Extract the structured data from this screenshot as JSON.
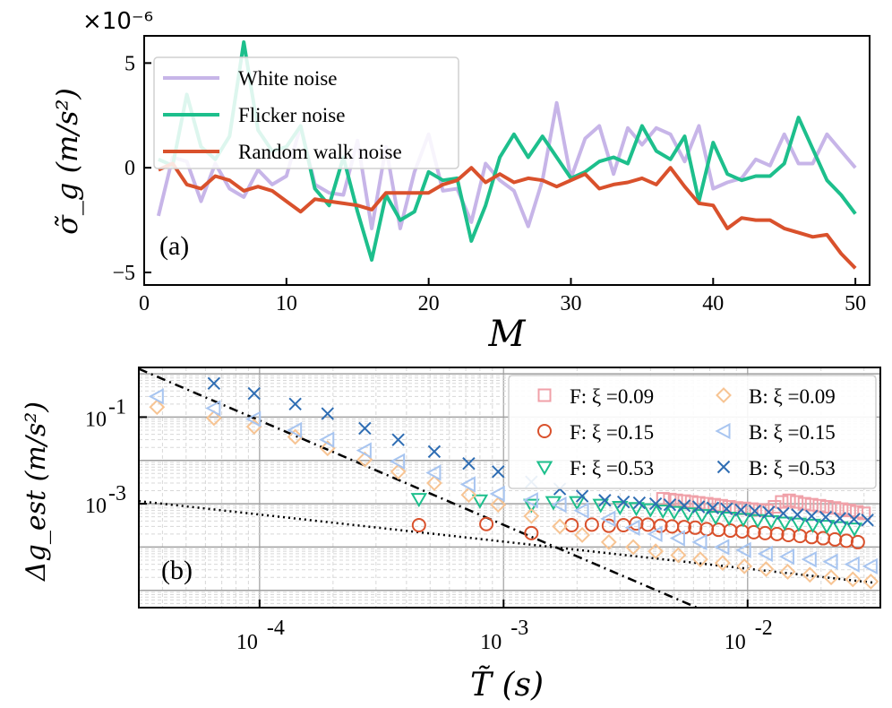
{
  "chart_data": [
    {
      "type": "line",
      "panel_label": "(a)",
      "xlabel": "M",
      "ylabel": "σ̃_g (m/s²)",
      "y_multiplier": "×10⁻⁶",
      "xlim": [
        0,
        51
      ],
      "ylim": [
        -5.6,
        6.3
      ],
      "xticks": [
        0,
        10,
        20,
        30,
        40,
        50
      ],
      "yticks": [
        -5,
        0,
        5
      ],
      "legend_position": "upper-left",
      "series": [
        {
          "name": "White noise",
          "color": "#c7b5e8",
          "x": [
            1,
            2,
            3,
            4,
            5,
            6,
            7,
            8,
            9,
            10,
            11,
            12,
            13,
            14,
            15,
            16,
            17,
            18,
            19,
            20,
            21,
            22,
            23,
            24,
            25,
            26,
            27,
            28,
            29,
            30,
            31,
            32,
            33,
            34,
            35,
            36,
            37,
            38,
            39,
            40,
            41,
            42,
            43,
            44,
            45,
            46,
            47,
            48,
            49,
            50
          ],
          "y": [
            -2.3,
            0.5,
            0.3,
            -1.6,
            0.2,
            -1.0,
            -1.4,
            -0.1,
            -0.8,
            -0.4,
            2.0,
            -0.8,
            -1.2,
            -1.3,
            1.3,
            -2.9,
            1.0,
            -2.9,
            -0.2,
            1.6,
            -1.1,
            -1.0,
            -2.6,
            0.2,
            -0.6,
            -1.1,
            -2.8,
            -0.6,
            3.1,
            -0.5,
            1.4,
            2.0,
            -0.3,
            1.9,
            1.1,
            1.9,
            1.6,
            0.3,
            2.0,
            -1.0,
            -0.7,
            -0.5,
            0.4,
            0.1,
            1.6,
            0.2,
            0.2,
            1.6,
            0.8,
            0.0
          ]
        },
        {
          "name": "Flicker noise",
          "color": "#1dbf8c",
          "x": [
            1,
            2,
            3,
            4,
            5,
            6,
            7,
            8,
            9,
            10,
            11,
            12,
            13,
            14,
            15,
            16,
            17,
            18,
            19,
            20,
            21,
            22,
            23,
            24,
            25,
            26,
            27,
            28,
            29,
            30,
            31,
            32,
            33,
            34,
            35,
            36,
            37,
            38,
            39,
            40,
            41,
            42,
            43,
            44,
            45,
            46,
            47,
            48,
            49,
            50
          ],
          "y": [
            0.4,
            0.1,
            3.5,
            1.0,
            0.4,
            1.5,
            6.0,
            1.8,
            0.8,
            1.0,
            2.0,
            -1.0,
            -1.8,
            0.5,
            -2.1,
            -4.4,
            -1.3,
            -2.5,
            -2.1,
            -0.2,
            -0.6,
            -0.5,
            -3.5,
            -1.8,
            0.5,
            1.6,
            0.5,
            1.5,
            0.5,
            -0.5,
            -0.2,
            0.3,
            0.5,
            0.2,
            2.0,
            0.8,
            0.4,
            1.5,
            -1.6,
            1.2,
            -0.3,
            -0.6,
            -0.4,
            -0.4,
            0.2,
            2.4,
            0.9,
            -0.6,
            -1.3,
            -2.2
          ]
        },
        {
          "name": "Random walk noise",
          "color": "#d9512c",
          "x": [
            1,
            2,
            3,
            4,
            5,
            6,
            7,
            8,
            9,
            10,
            11,
            12,
            13,
            14,
            15,
            16,
            17,
            18,
            19,
            20,
            21,
            22,
            23,
            24,
            25,
            26,
            27,
            28,
            29,
            30,
            31,
            32,
            33,
            34,
            35,
            36,
            37,
            38,
            39,
            40,
            41,
            42,
            43,
            44,
            45,
            46,
            47,
            48,
            49,
            50
          ],
          "y": [
            -0.1,
            0.2,
            -0.8,
            -1.0,
            -0.4,
            -0.6,
            -1.1,
            -0.9,
            -1.1,
            -1.6,
            -2.1,
            -1.5,
            -1.6,
            -1.7,
            -1.8,
            -2.0,
            -1.2,
            -1.2,
            -1.2,
            -1.2,
            -0.8,
            -0.6,
            0.0,
            -0.7,
            -0.3,
            -0.7,
            -0.5,
            -0.6,
            -0.9,
            -0.6,
            -0.3,
            -1.0,
            -0.8,
            -0.7,
            -0.5,
            -0.8,
            0.0,
            -0.9,
            -1.7,
            -1.8,
            -2.9,
            -2.4,
            -2.5,
            -2.5,
            -2.9,
            -3.1,
            -3.3,
            -3.2,
            -4.1,
            -4.8
          ]
        }
      ]
    },
    {
      "type": "scatter",
      "panel_label": "(b)",
      "xlabel": "T̃ (s)",
      "ylabel": "Δg_est (m/s²)",
      "x_scale": "log",
      "y_scale": "log",
      "xlim": [
        3.2e-05,
        0.035
      ],
      "ylim": [
        4e-06,
        1.4
      ],
      "grid": true,
      "xticks": [
        {
          "value": 0.0001,
          "base": "10",
          "exp": "-4"
        },
        {
          "value": 0.001,
          "base": "10",
          "exp": "-3"
        },
        {
          "value": 0.01,
          "base": "10",
          "exp": "-2"
        }
      ],
      "yticks": [
        {
          "value": 0.1,
          "base": "10",
          "exp": "-1"
        },
        {
          "value": 0.001,
          "base": "10",
          "exp": "-3"
        }
      ],
      "legend_position": "upper-right",
      "reference_lines": [
        {
          "style": "dashdot",
          "x": [
            3.2e-05,
            0.0062
          ],
          "y": [
            1.3,
            4e-06
          ]
        },
        {
          "style": "dotted",
          "x": [
            3.2e-05,
            0.033
          ],
          "y": [
            0.00115,
            1.5e-05
          ]
        }
      ],
      "series": [
        {
          "name": "F: ξ =0.09",
          "marker": "square",
          "color": "#f0a0a8",
          "x": [
            0.0045,
            0.0048,
            0.0051,
            0.0055,
            0.0059,
            0.0063,
            0.0068,
            0.0073,
            0.0078,
            0.0084,
            0.009,
            0.0097,
            0.0104,
            0.0112,
            0.012,
            0.0129,
            0.0138,
            0.0148,
            0.0159,
            0.0171,
            0.0183,
            0.0197,
            0.0211,
            0.0227,
            0.0243,
            0.0261,
            0.028,
            0.03
          ],
          "y": [
            0.0013,
            0.00125,
            0.0012,
            0.00115,
            0.0011,
            0.00105,
            0.001,
            0.00095,
            0.0009,
            0.00085,
            0.0008,
            0.00078,
            0.00075,
            0.00072,
            0.0007,
            0.00085,
            0.0011,
            0.0012,
            0.0011,
            0.001,
            0.00095,
            0.0009,
            0.00085,
            0.0008,
            0.00075,
            0.0007,
            0.00065,
            0.0006
          ]
        },
        {
          "name": "F: ξ =0.15",
          "marker": "circle",
          "color": "#d9512c",
          "x": [
            0.00045,
            0.00085,
            0.0013,
            0.0019,
            0.0023,
            0.0027,
            0.0031,
            0.0035,
            0.0039,
            0.0044,
            0.0049,
            0.0055,
            0.0061,
            0.0068,
            0.0076,
            0.0085,
            0.0095,
            0.0106,
            0.0118,
            0.0132,
            0.0147,
            0.0164,
            0.0183,
            0.0204,
            0.0228,
            0.0254,
            0.0283
          ],
          "y": [
            0.00032,
            0.00034,
            0.00021,
            0.00032,
            0.00033,
            0.00031,
            0.00032,
            0.00035,
            0.00033,
            0.00031,
            0.0003,
            0.00029,
            0.00028,
            0.00026,
            0.00025,
            0.00024,
            0.00023,
            0.00022,
            0.00021,
            0.0002,
            0.00019,
            0.00018,
            0.00017,
            0.00016,
            0.00015,
            0.00014,
            0.00013
          ]
        },
        {
          "name": "F: ξ =0.53",
          "marker": "triangle-down",
          "color": "#1dbf8c",
          "x": [
            0.00045,
            0.0008,
            0.0013,
            0.0016,
            0.002,
            0.0025,
            0.003,
            0.0035,
            0.004,
            0.0045,
            0.005,
            0.0057,
            0.0065,
            0.0074,
            0.0084,
            0.0096,
            0.011,
            0.0125,
            0.0142,
            0.0162,
            0.0185,
            0.0211,
            0.024,
            0.0274
          ],
          "y": [
            0.0013,
            0.0012,
            0.00095,
            0.0011,
            0.0011,
            0.00095,
            0.00085,
            0.0008,
            0.00075,
            0.0007,
            0.00065,
            0.0006,
            0.00055,
            0.0005,
            0.00048,
            0.00045,
            0.00042,
            0.0004,
            0.00037,
            0.00035,
            0.00033,
            0.00031,
            0.00029,
            0.00027
          ]
        },
        {
          "name": "B: ξ =0.09",
          "marker": "diamond",
          "color": "#f7c493",
          "x": [
            3.8e-05,
            6.5e-05,
            9.5e-05,
            0.00014,
            0.00019,
            0.00027,
            0.00037,
            0.00052,
            0.00072,
            0.00095,
            0.0013,
            0.0017,
            0.0021,
            0.0027,
            0.0034,
            0.0042,
            0.0052,
            0.0064,
            0.0079,
            0.0097,
            0.0119,
            0.0146,
            0.018,
            0.022,
            0.027,
            0.032
          ],
          "y": [
            0.17,
            0.095,
            0.06,
            0.035,
            0.019,
            0.0105,
            0.0055,
            0.003,
            0.0016,
            0.00095,
            0.00052,
            0.0003,
            0.00019,
            0.00013,
            0.0001,
            8e-05,
            6.5e-05,
            5.2e-05,
            4.3e-05,
            3.6e-05,
            3.1e-05,
            2.7e-05,
            2.3e-05,
            2e-05,
            1.8e-05,
            1.6e-05
          ]
        },
        {
          "name": "B: ξ =0.15",
          "marker": "triangle-left",
          "color": "#a8c5f0",
          "x": [
            3.8e-05,
            6.5e-05,
            9.5e-05,
            0.00014,
            0.00019,
            0.00027,
            0.00037,
            0.00052,
            0.00072,
            0.00095,
            0.0013,
            0.0017,
            0.0021,
            0.0027,
            0.0034,
            0.0042,
            0.0052,
            0.0064,
            0.0079,
            0.0097,
            0.0119,
            0.0146,
            0.018,
            0.022,
            0.027,
            0.032
          ],
          "y": [
            0.3,
            0.16,
            0.09,
            0.05,
            0.03,
            0.017,
            0.0095,
            0.0052,
            0.0028,
            0.0017,
            0.0012,
            0.00095,
            0.0007,
            0.00045,
            0.00028,
            0.0002,
            0.00016,
            0.00013,
            0.0001,
            8.5e-05,
            7e-05,
            6e-05,
            5.2e-05,
            4.6e-05,
            4e-05,
            3.6e-05
          ]
        },
        {
          "name": "B: ξ =0.53",
          "marker": "x",
          "color": "#2e6db3",
          "x": [
            6.5e-05,
            9.5e-05,
            0.00014,
            0.00019,
            0.00027,
            0.00037,
            0.00052,
            0.00072,
            0.00095,
            0.0013,
            0.0017,
            0.0021,
            0.0026,
            0.0031,
            0.0036,
            0.0042,
            0.0048,
            0.0055,
            0.0063,
            0.0072,
            0.0082,
            0.0094,
            0.0107,
            0.0122,
            0.014,
            0.016,
            0.0183,
            0.0209,
            0.0239,
            0.0273,
            0.031
          ],
          "y": [
            0.6,
            0.35,
            0.2,
            0.12,
            0.055,
            0.03,
            0.016,
            0.0085,
            0.0055,
            0.0032,
            0.0022,
            0.0015,
            0.0012,
            0.0011,
            0.00105,
            0.001,
            0.00095,
            0.0009,
            0.00085,
            0.0008,
            0.00076,
            0.00072,
            0.00068,
            0.00064,
            0.0006,
            0.00056,
            0.00052,
            0.00049,
            0.00046,
            0.00044,
            0.00042
          ]
        }
      ]
    }
  ]
}
